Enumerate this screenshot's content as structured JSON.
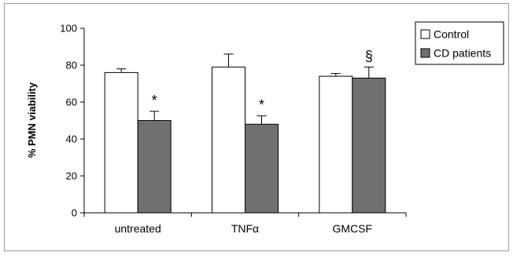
{
  "chart_data": {
    "type": "bar",
    "title": "",
    "xlabel": "",
    "ylabel": "% PMN viability",
    "ylim": [
      0,
      100
    ],
    "yticks": [
      0,
      20,
      40,
      60,
      80,
      100
    ],
    "yticks_text": [
      "0",
      "20",
      "40",
      "60",
      "80",
      "100"
    ],
    "categories": [
      "untreated",
      "TNFα",
      "GMCSF"
    ],
    "series": [
      {
        "name": "Control",
        "values": [
          76,
          79,
          74
        ],
        "errors": [
          2,
          7,
          1.5
        ],
        "color": "#ffffff"
      },
      {
        "name": "CD patients",
        "values": [
          50,
          48,
          73
        ],
        "errors": [
          5,
          4.5,
          6
        ],
        "color": "#707070"
      }
    ],
    "annotations": [
      {
        "category": "untreated",
        "series": "CD patients",
        "text": "*"
      },
      {
        "category": "TNFα",
        "series": "CD patients",
        "text": "*"
      },
      {
        "category": "GMCSF",
        "series": "CD patients",
        "text": "§"
      }
    ],
    "legend_position": "top-right",
    "grid": false
  }
}
